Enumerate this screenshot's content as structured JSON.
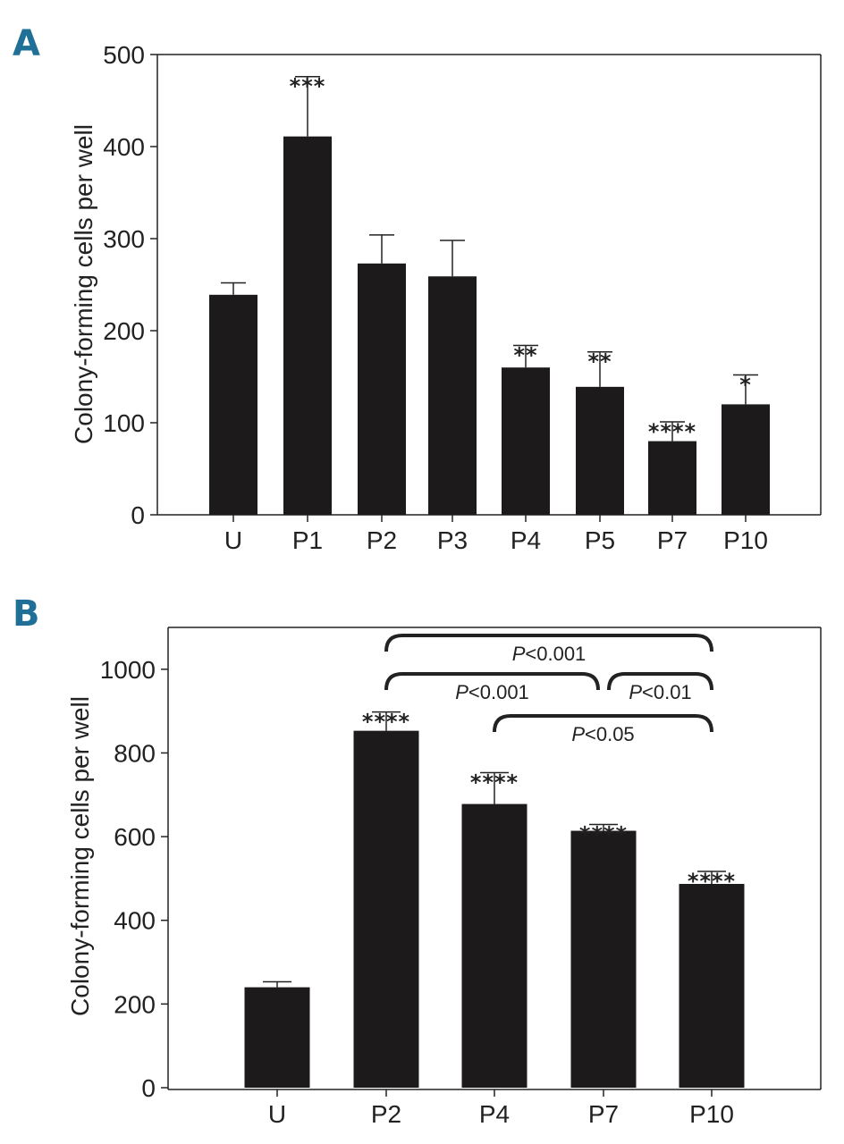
{
  "chart_data": [
    {
      "type": "bar",
      "panel_label": "A",
      "ylabel": "Colony-forming cells per well",
      "categories": [
        "U",
        "P1",
        "P2",
        "P3",
        "P4",
        "P5",
        "P7",
        "P10"
      ],
      "values": [
        239,
        411,
        273,
        259,
        160,
        139,
        80,
        120
      ],
      "errors": [
        13,
        65,
        31,
        39,
        24,
        38,
        21,
        32
      ],
      "significance": [
        "",
        "***",
        "",
        "",
        "**",
        "**",
        "****",
        "*"
      ],
      "ylim": [
        0,
        500
      ],
      "yticks": [
        0,
        100,
        200,
        300,
        400,
        500
      ]
    },
    {
      "type": "bar",
      "panel_label": "B",
      "ylabel": "Colony-forming cells per well",
      "categories": [
        "U",
        "P2",
        "P4",
        "P7",
        "P10"
      ],
      "values": [
        240,
        853,
        678,
        614,
        487
      ],
      "errors": [
        13,
        45,
        75,
        15,
        30
      ],
      "significance": [
        "",
        "****",
        "****",
        "****",
        "****"
      ],
      "ylim": [
        0,
        1100
      ],
      "yticks": [
        0,
        200,
        400,
        600,
        800,
        1000
      ],
      "comparisons": [
        {
          "from": "P2",
          "to": "P10",
          "prefix": "P",
          "label": "<0.001"
        },
        {
          "from": "P2",
          "to": "P7",
          "prefix": "P",
          "label": "<0.001"
        },
        {
          "from": "P7",
          "to": "P10",
          "prefix": "P",
          "label": "<0.01"
        },
        {
          "from": "P4",
          "to": "P10",
          "prefix": "P",
          "label": "<0.05"
        }
      ]
    }
  ]
}
